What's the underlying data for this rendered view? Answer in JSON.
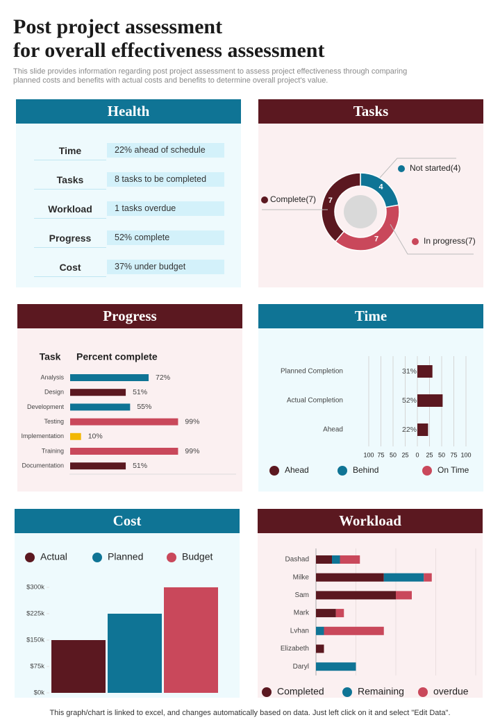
{
  "header": {
    "title_lines": [
      "Post project assessment",
      "for overall effectiveness assessment"
    ],
    "subtitle": "This slide provides information regarding post project assessment to assess project effectiveness through comparing planned costs and benefits with actual costs and benefits  to determine overall project's value."
  },
  "health": {
    "title": "Health",
    "rows": [
      [
        "Time",
        "22% ahead of schedule"
      ],
      [
        "Tasks",
        "8 tasks to be completed"
      ],
      [
        "Workload",
        "1 tasks overdue"
      ],
      [
        "Progress",
        "52% complete"
      ],
      [
        "Cost",
        "37% under budget"
      ]
    ]
  },
  "chart_data": [
    {
      "type": "donut",
      "title": "Tasks",
      "categories": [
        "Not started",
        "In progress",
        "Complete"
      ],
      "values": [
        4,
        7,
        7
      ],
      "colors": [
        "#0f7495",
        "#c9485b",
        "#5b1820"
      ],
      "legend_labels": [
        "Not started(4)",
        "In progress(7)",
        "Complete(7)"
      ]
    },
    {
      "type": "hbar",
      "title": "Progress",
      "column_headers": [
        "Task",
        "Percent complete"
      ],
      "categories": [
        "Analysis",
        "Design",
        "Development",
        "Testing",
        "Implementation",
        "Training",
        "Documentation"
      ],
      "values": [
        72,
        51,
        55,
        99,
        10,
        99,
        51
      ],
      "value_labels": [
        "72%",
        "51%",
        "55%",
        "99%",
        "10%",
        "99%",
        "51%"
      ],
      "colors": [
        "#0f7495",
        "#5b1820",
        "#0f7495",
        "#c9485b",
        "#f2b705",
        "#c9485b",
        "#5b1820"
      ],
      "xlim": [
        0,
        100
      ]
    },
    {
      "type": "hbar",
      "title": "Time",
      "categories": [
        "Planned Completion",
        "Actual Completion",
        "Ahead"
      ],
      "values": [
        31,
        52,
        22
      ],
      "value_labels": [
        "31%",
        "52%",
        "22%"
      ],
      "color": "#5b1820",
      "xlim": [
        -100,
        100
      ],
      "xticks": [
        {
          "value": -100,
          "label": "100"
        },
        {
          "value": -75,
          "label": "75"
        },
        {
          "value": -50,
          "label": "50"
        },
        {
          "value": -25,
          "label": "25"
        },
        0,
        25,
        50,
        75,
        100
      ],
      "grid": true,
      "legend": [
        {
          "name": "Ahead",
          "color": "#5b1820"
        },
        {
          "name": "Behind",
          "color": "#0f7495"
        },
        {
          "name": "On Time",
          "color": "#c9485b"
        }
      ]
    },
    {
      "type": "bar",
      "title": "Cost",
      "categories": [
        null
      ],
      "series": [
        {
          "name": "Actual",
          "color": "#5b1820",
          "values": [
            150000
          ]
        },
        {
          "name": "Planned",
          "color": "#0f7495",
          "values": [
            225000
          ]
        },
        {
          "name": "Budget",
          "color": "#c9485b",
          "values": [
            300000
          ]
        }
      ],
      "ylim": [
        0,
        300000
      ],
      "yticks": [
        {
          "value": 0,
          "label": "$0k"
        },
        {
          "value": 75000,
          "label": "$75k"
        },
        {
          "value": 150000,
          "label": "$150k"
        },
        {
          "value": 225000,
          "label": "$225k"
        },
        {
          "value": 300000,
          "label": "$300k"
        }
      ],
      "legend": "top"
    },
    {
      "type": "stacked-hbar",
      "title": "Workload",
      "categories": [
        "Dashad",
        "Milke",
        "Sam",
        "Mark",
        "Lvhan",
        "Elizabeth",
        "Daryl"
      ],
      "series": [
        {
          "name": "Completed",
          "color": "#5b1820",
          "values": [
            2,
            8.5,
            10,
            2.5,
            0,
            1,
            0
          ]
        },
        {
          "name": "Remaining",
          "color": "#0f7495",
          "values": [
            1,
            5,
            0,
            0,
            1,
            0,
            5
          ]
        },
        {
          "name": "overdue",
          "color": "#c9485b",
          "values": [
            2.5,
            1,
            2,
            1,
            7.5,
            0,
            0
          ]
        }
      ],
      "xlim": [
        0,
        20
      ],
      "legend": "bottom"
    }
  ],
  "footer": "This graph/chart is linked to excel,  and changes automatically based on data. Just left click on it and select \"Edit Data\"."
}
